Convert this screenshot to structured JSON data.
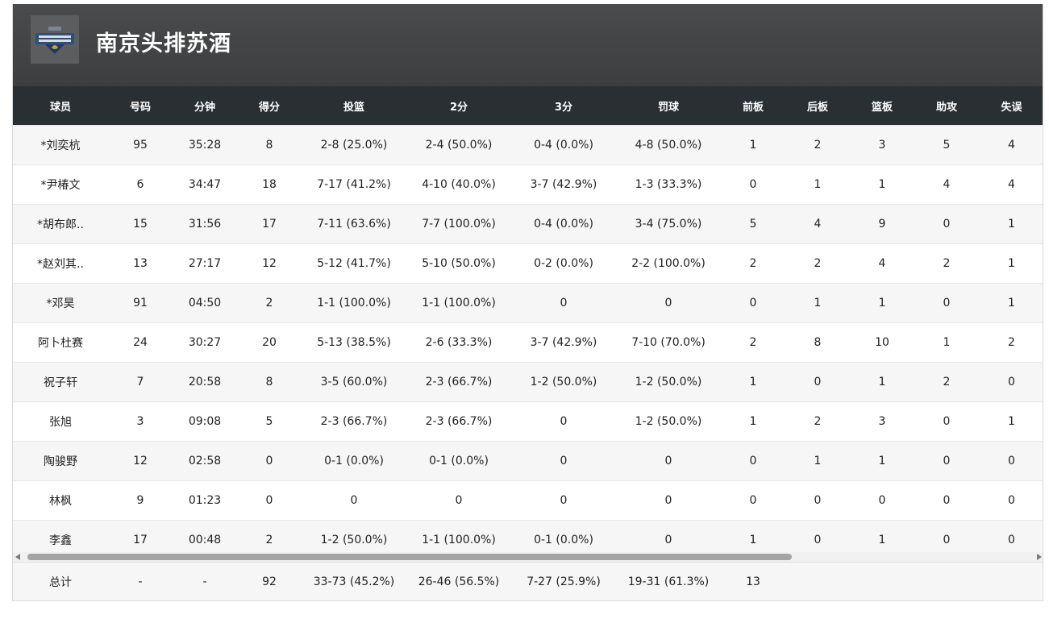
{
  "team": {
    "name": "南京头排苏酒",
    "logo_icon": "team-logo-icon"
  },
  "columns": [
    "球员",
    "号码",
    "分钟",
    "得分",
    "投篮",
    "2分",
    "3分",
    "罚球",
    "前板",
    "后板",
    "篮板",
    "助攻",
    "失误"
  ],
  "players": [
    [
      "*刘奕杭",
      "95",
      "35:28",
      "8",
      "2-8 (25.0%)",
      "2-4 (50.0%)",
      "0-4 (0.0%)",
      "4-8 (50.0%)",
      "1",
      "2",
      "3",
      "5",
      "4"
    ],
    [
      "*尹椿文",
      "6",
      "34:47",
      "18",
      "7-17 (41.2%)",
      "4-10 (40.0%)",
      "3-7 (42.9%)",
      "1-3 (33.3%)",
      "0",
      "1",
      "1",
      "4",
      "4"
    ],
    [
      "*胡布郎..",
      "15",
      "31:56",
      "17",
      "7-11 (63.6%)",
      "7-7 (100.0%)",
      "0-4 (0.0%)",
      "3-4 (75.0%)",
      "5",
      "4",
      "9",
      "0",
      "1"
    ],
    [
      "*赵刘其..",
      "13",
      "27:17",
      "12",
      "5-12 (41.7%)",
      "5-10 (50.0%)",
      "0-2 (0.0%)",
      "2-2 (100.0%)",
      "2",
      "2",
      "4",
      "2",
      "1"
    ],
    [
      "*邓昊",
      "91",
      "04:50",
      "2",
      "1-1 (100.0%)",
      "1-1 (100.0%)",
      "0",
      "0",
      "0",
      "1",
      "1",
      "0",
      "1"
    ],
    [
      "阿卜杜赛",
      "24",
      "30:27",
      "20",
      "5-13 (38.5%)",
      "2-6 (33.3%)",
      "3-7 (42.9%)",
      "7-10 (70.0%)",
      "2",
      "8",
      "10",
      "1",
      "2"
    ],
    [
      "祝子轩",
      "7",
      "20:58",
      "8",
      "3-5 (60.0%)",
      "2-3 (66.7%)",
      "1-2 (50.0%)",
      "1-2 (50.0%)",
      "1",
      "0",
      "1",
      "2",
      "0"
    ],
    [
      "张旭",
      "3",
      "09:08",
      "5",
      "2-3 (66.7%)",
      "2-3 (66.7%)",
      "0",
      "1-2 (50.0%)",
      "1",
      "2",
      "3",
      "0",
      "1"
    ],
    [
      "陶骏野",
      "12",
      "02:58",
      "0",
      "0-1 (0.0%)",
      "0-1 (0.0%)",
      "0",
      "0",
      "0",
      "1",
      "1",
      "0",
      "0"
    ],
    [
      "林枫",
      "9",
      "01:23",
      "0",
      "0",
      "0",
      "0",
      "0",
      "0",
      "0",
      "0",
      "0",
      "0"
    ],
    [
      "李鑫",
      "17",
      "00:48",
      "2",
      "1-2 (50.0%)",
      "1-1 (100.0%)",
      "0-1 (0.0%)",
      "0",
      "1",
      "0",
      "1",
      "0",
      "0"
    ]
  ],
  "totals": [
    "总计",
    "-",
    "-",
    "92",
    "33-73 (45.2%)",
    "26-46 (56.5%)",
    "7-27 (25.9%)",
    "19-31 (61.3%)",
    "13",
    "",
    "",
    "",
    ""
  ]
}
